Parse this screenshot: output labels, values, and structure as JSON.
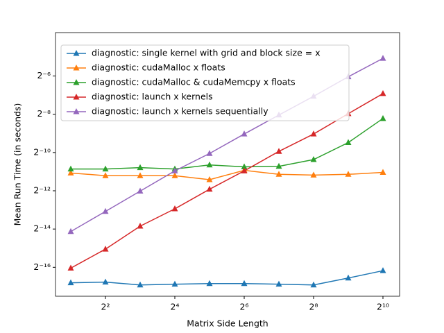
{
  "chart_data": {
    "type": "line",
    "xlabel": "Matrix Side Length",
    "ylabel": "Mean Run Time (in seconds)",
    "log_x": true,
    "log_y": true,
    "log_base": 2,
    "legend": "upper left",
    "grid": false,
    "x": [
      2,
      4,
      8,
      16,
      32,
      64,
      128,
      256,
      512,
      1024
    ],
    "xlim": [
      1.474,
      1428
    ],
    "ylim": [
      5.35e-06,
      0.0571
    ],
    "xticks": [
      {
        "value": 4,
        "label": "2²"
      },
      {
        "value": 16,
        "label": "2⁴"
      },
      {
        "value": 64,
        "label": "2⁶"
      },
      {
        "value": 256,
        "label": "2⁸"
      },
      {
        "value": 1024,
        "label": "2¹⁰"
      }
    ],
    "yticks": [
      {
        "value": 1.52587890625e-05,
        "label": "2⁻¹⁶"
      },
      {
        "value": 6.103515625e-05,
        "label": "2⁻¹⁴"
      },
      {
        "value": 0.000244140625,
        "label": "2⁻¹²"
      },
      {
        "value": 0.0009765625,
        "label": "2⁻¹⁰"
      },
      {
        "value": 0.00390625,
        "label": "2⁻⁸"
      },
      {
        "value": 0.015625,
        "label": "2⁻⁶"
      }
    ],
    "series": [
      {
        "name": "diagnostic: single kernel with grid and block size = x",
        "color": "#1f77b4",
        "values": [
          8.7e-06,
          8.94e-06,
          8.06e-06,
          8.28e-06,
          8.47e-06,
          8.47e-06,
          8.28e-06,
          8.06e-06,
          1.035e-05,
          1.35e-05
        ]
      },
      {
        "name": "diagnostic: cudaMalloc x floats",
        "color": "#ff7f0e",
        "values": [
          0.000465,
          0.000422,
          0.000422,
          0.000422,
          0.000365,
          0.000513,
          0.000443,
          0.000431,
          0.000443,
          0.000475
        ]
      },
      {
        "name": "diagnostic: cudaMalloc & cudaMemcpy x floats",
        "color": "#2ca02c",
        "values": [
          0.000538,
          0.000538,
          0.000565,
          0.000538,
          0.000622,
          0.000581,
          0.000593,
          0.000756,
          0.0014,
          0.00335
        ]
      },
      {
        "name": "diagnostic: launch x kernels",
        "color": "#d62728",
        "values": [
          1.48e-05,
          2.95e-05,
          6.78e-05,
          0.000127,
          0.000258,
          0.000502,
          0.001018,
          0.00191,
          0.00399,
          0.00826
        ]
      },
      {
        "name": "diagnostic: launch x kernels sequentially",
        "color": "#9467bd",
        "values": [
          5.58e-05,
          0.0001155,
          0.000241,
          0.000502,
          0.000943,
          0.00191,
          0.0038,
          0.00749,
          0.0152,
          0.0296
        ]
      }
    ]
  }
}
